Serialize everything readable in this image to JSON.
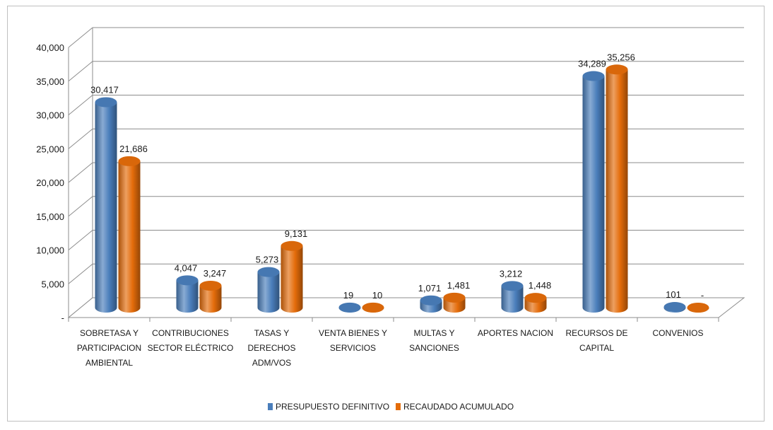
{
  "chart_data": {
    "type": "bar",
    "categories": [
      [
        "SOBRETASA Y",
        "PARTICIPACION",
        "AMBIENTAL"
      ],
      [
        "CONTRIBUCIONES",
        "SECTOR ELÉCTRICO"
      ],
      [
        "TASAS Y",
        "DERECHOS",
        "ADM/VOS"
      ],
      [
        "VENTA BIENES Y",
        "SERVICIOS"
      ],
      [
        "MULTAS Y",
        "SANCIONES"
      ],
      [
        "APORTES NACION"
      ],
      [
        "RECURSOS DE",
        "CAPITAL"
      ],
      [
        "CONVENIOS"
      ]
    ],
    "series": [
      {
        "name": "PRESUPUESTO DEFINITIVO",
        "color": "#4a7ebb",
        "values": [
          30417,
          4047,
          5273,
          19,
          1071,
          3212,
          34289,
          101
        ],
        "labels": [
          "30,417",
          "4,047",
          "5,273",
          "19",
          "1,071",
          "3,212",
          "34,289",
          "101"
        ]
      },
      {
        "name": "RECAUDADO ACUMULADO",
        "color": "#e46c0a",
        "values": [
          21686,
          3247,
          9131,
          10,
          1481,
          1448,
          35256,
          0
        ],
        "labels": [
          "21,686",
          "3,247",
          "9,131",
          "10",
          "1,481",
          "1,448",
          "35,256",
          "-"
        ]
      }
    ],
    "y_ticks": [
      "-",
      "5,000",
      "10,000",
      "15,000",
      "20,000",
      "25,000",
      "30,000",
      "35,000",
      "40,000"
    ],
    "ylim": [
      0,
      40000
    ],
    "grid": true,
    "legend_position": "bottom",
    "three_d": true
  }
}
